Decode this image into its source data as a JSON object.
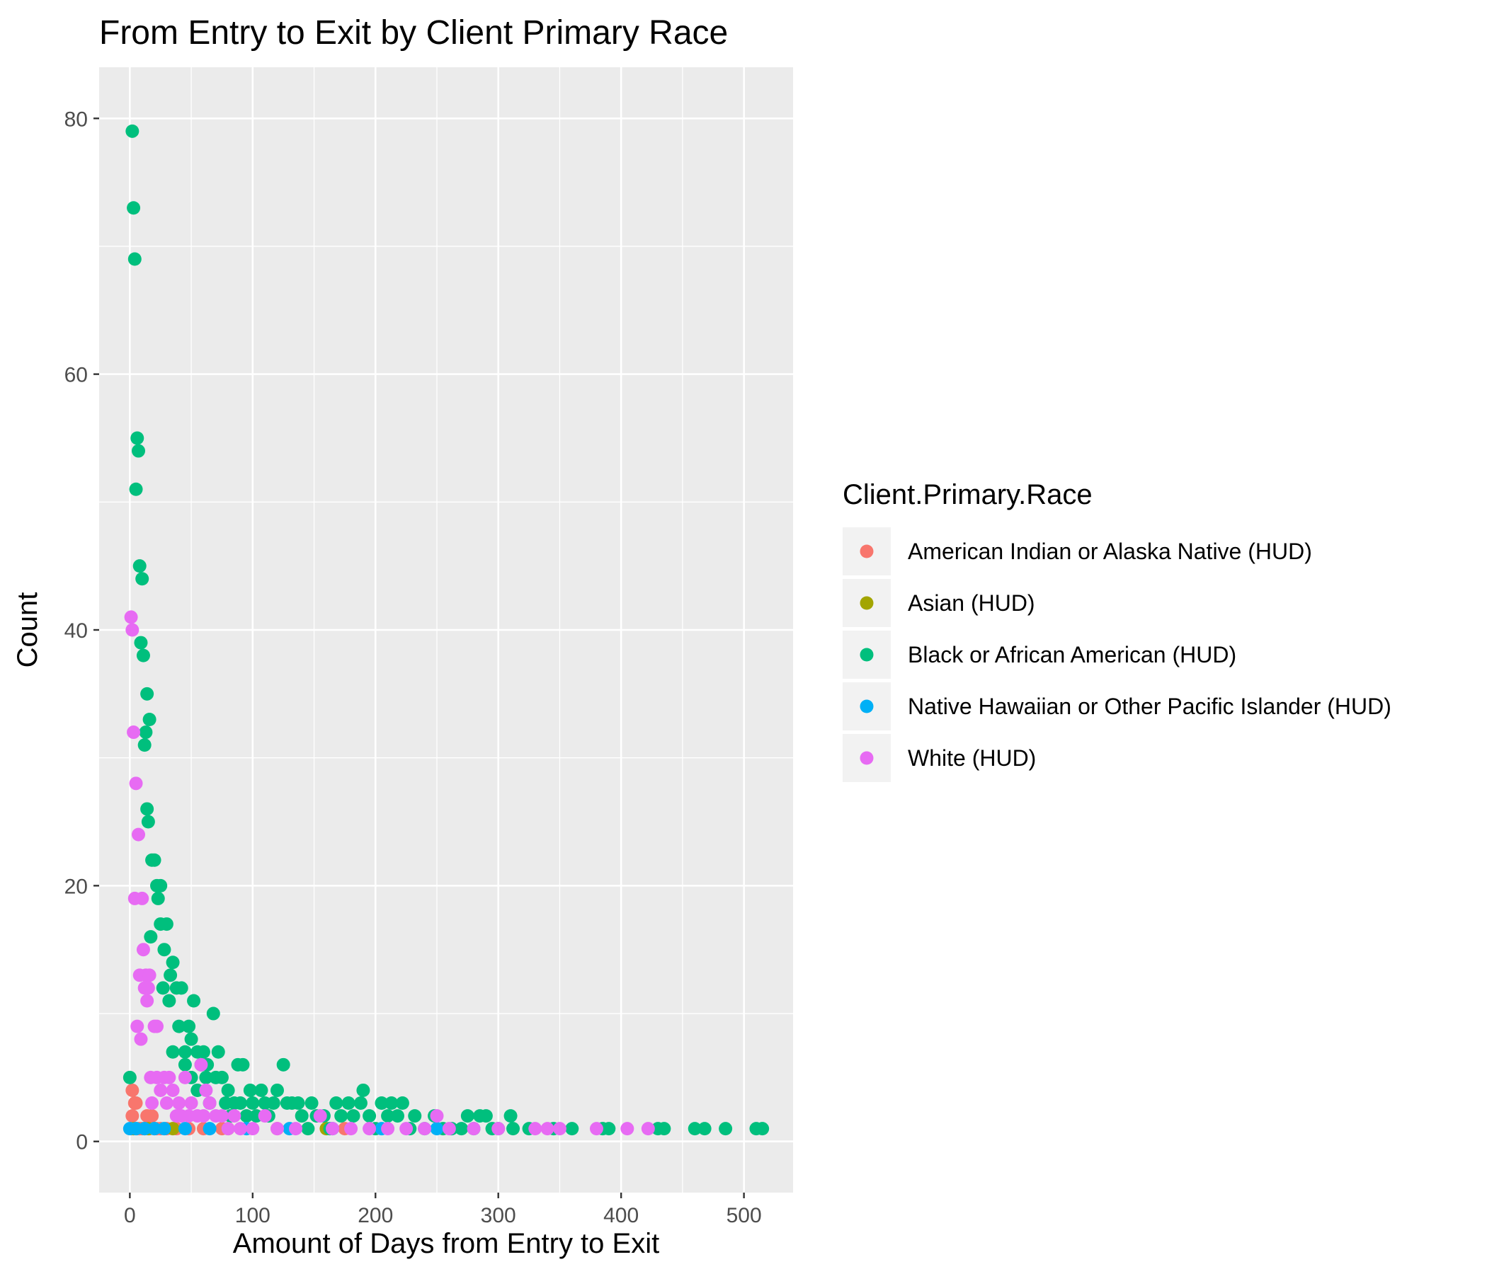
{
  "chart_data": {
    "type": "scatter",
    "title": "From Entry to Exit by Client Primary Race",
    "xlabel": "Amount of Days from Entry to Exit",
    "ylabel": "Count",
    "xlim": [
      -25,
      540
    ],
    "ylim": [
      -4,
      84
    ],
    "xticks": [
      0,
      100,
      200,
      300,
      400,
      500
    ],
    "yticks": [
      0,
      20,
      40,
      60,
      80
    ],
    "grid": true,
    "legend": {
      "title": "Client.Primary.Race",
      "position": "right"
    },
    "series": [
      {
        "name": "American Indian or Alaska Native (HUD)",
        "color": "#F8766D",
        "points": [
          [
            1,
            1
          ],
          [
            2,
            2
          ],
          [
            2,
            4
          ],
          [
            4,
            3
          ],
          [
            5,
            3
          ],
          [
            6,
            1
          ],
          [
            8,
            1
          ],
          [
            10,
            1
          ],
          [
            12,
            1
          ],
          [
            14,
            2
          ],
          [
            16,
            1
          ],
          [
            18,
            2
          ],
          [
            20,
            1
          ],
          [
            22,
            1
          ],
          [
            25,
            1
          ],
          [
            30,
            1
          ],
          [
            38,
            1
          ],
          [
            48,
            1
          ],
          [
            60,
            1
          ],
          [
            75,
            1
          ],
          [
            120,
            1
          ],
          [
            175,
            1
          ]
        ]
      },
      {
        "name": "Asian (HUD)",
        "color": "#A3A500",
        "points": [
          [
            3,
            1
          ],
          [
            15,
            1
          ],
          [
            35,
            1
          ],
          [
            80,
            1
          ],
          [
            160,
            1
          ]
        ]
      },
      {
        "name": "Black or African American (HUD)",
        "color": "#00BF7D",
        "points": [
          [
            0,
            5
          ],
          [
            2,
            79
          ],
          [
            3,
            73
          ],
          [
            4,
            69
          ],
          [
            5,
            51
          ],
          [
            6,
            55
          ],
          [
            7,
            54
          ],
          [
            8,
            45
          ],
          [
            9,
            39
          ],
          [
            10,
            44
          ],
          [
            11,
            38
          ],
          [
            12,
            31
          ],
          [
            13,
            32
          ],
          [
            14,
            35
          ],
          [
            14,
            26
          ],
          [
            15,
            25
          ],
          [
            16,
            33
          ],
          [
            17,
            16
          ],
          [
            18,
            22
          ],
          [
            20,
            22
          ],
          [
            22,
            20
          ],
          [
            23,
            19
          ],
          [
            25,
            17
          ],
          [
            25,
            20
          ],
          [
            27,
            12
          ],
          [
            28,
            15
          ],
          [
            30,
            17
          ],
          [
            32,
            11
          ],
          [
            33,
            13
          ],
          [
            35,
            14
          ],
          [
            35,
            7
          ],
          [
            38,
            12
          ],
          [
            40,
            9
          ],
          [
            42,
            12
          ],
          [
            45,
            7
          ],
          [
            45,
            6
          ],
          [
            48,
            9
          ],
          [
            50,
            8
          ],
          [
            50,
            5
          ],
          [
            52,
            11
          ],
          [
            55,
            7
          ],
          [
            55,
            4
          ],
          [
            58,
            6
          ],
          [
            60,
            7
          ],
          [
            62,
            5
          ],
          [
            63,
            6
          ],
          [
            65,
            3
          ],
          [
            68,
            10
          ],
          [
            70,
            5
          ],
          [
            72,
            7
          ],
          [
            75,
            5
          ],
          [
            78,
            3
          ],
          [
            80,
            4
          ],
          [
            82,
            2
          ],
          [
            85,
            3
          ],
          [
            88,
            6
          ],
          [
            90,
            3
          ],
          [
            92,
            6
          ],
          [
            95,
            2
          ],
          [
            98,
            4
          ],
          [
            100,
            3
          ],
          [
            103,
            2
          ],
          [
            107,
            4
          ],
          [
            110,
            3
          ],
          [
            113,
            2
          ],
          [
            117,
            3
          ],
          [
            120,
            4
          ],
          [
            125,
            6
          ],
          [
            128,
            3
          ],
          [
            132,
            3
          ],
          [
            137,
            3
          ],
          [
            140,
            2
          ],
          [
            145,
            1
          ],
          [
            148,
            3
          ],
          [
            152,
            2
          ],
          [
            158,
            2
          ],
          [
            163,
            1
          ],
          [
            168,
            3
          ],
          [
            172,
            2
          ],
          [
            178,
            3
          ],
          [
            182,
            2
          ],
          [
            188,
            3
          ],
          [
            190,
            4
          ],
          [
            195,
            2
          ],
          [
            200,
            1
          ],
          [
            205,
            3
          ],
          [
            210,
            2
          ],
          [
            213,
            3
          ],
          [
            218,
            2
          ],
          [
            222,
            3
          ],
          [
            228,
            1
          ],
          [
            232,
            2
          ],
          [
            240,
            1
          ],
          [
            248,
            2
          ],
          [
            255,
            1
          ],
          [
            262,
            1
          ],
          [
            270,
            1
          ],
          [
            275,
            2
          ],
          [
            280,
            1
          ],
          [
            285,
            2
          ],
          [
            290,
            2
          ],
          [
            295,
            1
          ],
          [
            300,
            1
          ],
          [
            310,
            2
          ],
          [
            312,
            1
          ],
          [
            325,
            1
          ],
          [
            345,
            1
          ],
          [
            360,
            1
          ],
          [
            385,
            1
          ],
          [
            390,
            1
          ],
          [
            430,
            1
          ],
          [
            435,
            1
          ],
          [
            460,
            1
          ],
          [
            468,
            1
          ],
          [
            485,
            1
          ],
          [
            510,
            1
          ],
          [
            515,
            1
          ]
        ]
      },
      {
        "name": "Native Hawaiian or Other Pacific Islander (HUD)",
        "color": "#00B0F6",
        "points": [
          [
            0,
            1
          ],
          [
            5,
            1
          ],
          [
            12,
            1
          ],
          [
            20,
            1
          ],
          [
            28,
            1
          ],
          [
            45,
            1
          ],
          [
            65,
            1
          ],
          [
            95,
            1
          ],
          [
            130,
            1
          ],
          [
            165,
            1
          ],
          [
            205,
            1
          ],
          [
            250,
            1
          ]
        ]
      },
      {
        "name": "White (HUD)",
        "color": "#E76BF3",
        "points": [
          [
            1,
            41
          ],
          [
            2,
            40
          ],
          [
            3,
            32
          ],
          [
            4,
            19
          ],
          [
            5,
            28
          ],
          [
            6,
            9
          ],
          [
            7,
            24
          ],
          [
            8,
            13
          ],
          [
            9,
            8
          ],
          [
            10,
            19
          ],
          [
            11,
            15
          ],
          [
            12,
            12
          ],
          [
            13,
            13
          ],
          [
            14,
            11
          ],
          [
            15,
            12
          ],
          [
            16,
            13
          ],
          [
            17,
            5
          ],
          [
            18,
            3
          ],
          [
            20,
            9
          ],
          [
            22,
            9
          ],
          [
            22,
            5
          ],
          [
            25,
            4
          ],
          [
            28,
            5
          ],
          [
            30,
            3
          ],
          [
            32,
            5
          ],
          [
            35,
            4
          ],
          [
            38,
            2
          ],
          [
            40,
            3
          ],
          [
            42,
            2
          ],
          [
            45,
            5
          ],
          [
            48,
            2
          ],
          [
            50,
            3
          ],
          [
            55,
            2
          ],
          [
            58,
            6
          ],
          [
            60,
            2
          ],
          [
            62,
            4
          ],
          [
            65,
            3
          ],
          [
            70,
            2
          ],
          [
            75,
            2
          ],
          [
            80,
            1
          ],
          [
            85,
            2
          ],
          [
            90,
            1
          ],
          [
            100,
            1
          ],
          [
            110,
            2
          ],
          [
            120,
            1
          ],
          [
            135,
            1
          ],
          [
            155,
            2
          ],
          [
            165,
            1
          ],
          [
            180,
            1
          ],
          [
            195,
            1
          ],
          [
            210,
            1
          ],
          [
            225,
            1
          ],
          [
            240,
            1
          ],
          [
            250,
            2
          ],
          [
            260,
            1
          ],
          [
            280,
            1
          ],
          [
            300,
            1
          ],
          [
            330,
            1
          ],
          [
            340,
            1
          ],
          [
            350,
            1
          ],
          [
            380,
            1
          ],
          [
            405,
            1
          ],
          [
            422,
            1
          ]
        ]
      }
    ]
  }
}
